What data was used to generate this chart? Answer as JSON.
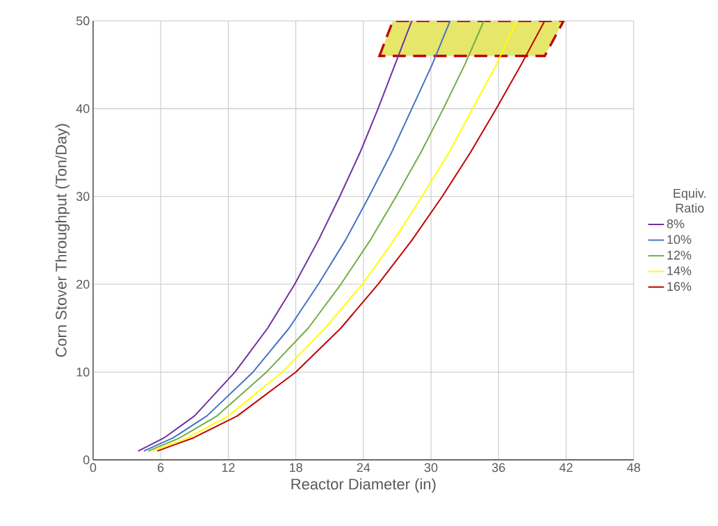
{
  "chart_data": {
    "type": "line",
    "xlabel": "Reactor Diameter (in)",
    "ylabel": "Corn Stover Throughput (Ton/Day)",
    "legend_title": "Equiv. Ratio",
    "xlim": [
      0,
      48
    ],
    "xticks": [
      0,
      6,
      12,
      18,
      24,
      30,
      36,
      42,
      48
    ],
    "ylim": [
      0,
      50
    ],
    "yticks": [
      0,
      10,
      20,
      30,
      40,
      50
    ],
    "grid": true,
    "legend": "right",
    "bands": [
      {
        "axis": "y",
        "from": 46,
        "to": 50,
        "color": "#e6e66a"
      }
    ],
    "marker": "none",
    "line_style": "solid",
    "series": [
      {
        "name": "8%",
        "color": "#7030a0",
        "x": [
          4.0,
          6.3,
          9.0,
          12.6,
          15.5,
          17.9,
          20.0,
          21.9,
          23.7,
          25.3,
          26.8,
          28.3
        ],
        "values": [
          1,
          2.5,
          5,
          10,
          15,
          20,
          25,
          30,
          35,
          40,
          45,
          50
        ]
      },
      {
        "name": "10%",
        "color": "#4472c4",
        "x": [
          4.5,
          7.1,
          10.1,
          14.2,
          17.4,
          20.0,
          22.4,
          24.5,
          26.5,
          28.3,
          30.1,
          31.7
        ],
        "values": [
          1,
          2.5,
          5,
          10,
          15,
          20,
          25,
          30,
          35,
          40,
          45,
          50
        ]
      },
      {
        "name": "12%",
        "color": "#70ad47",
        "x": [
          4.9,
          7.7,
          11.0,
          15.4,
          19.1,
          22.0,
          24.6,
          26.9,
          29.1,
          31.1,
          33.0,
          34.7
        ],
        "values": [
          1,
          2.5,
          5,
          10,
          15,
          20,
          25,
          30,
          35,
          40,
          45,
          50
        ]
      },
      {
        "name": "14%",
        "color": "#ffff00",
        "x": [
          5.3,
          8.4,
          12.0,
          16.8,
          20.6,
          23.9,
          26.7,
          29.2,
          31.6,
          33.7,
          35.8,
          37.6
        ],
        "values": [
          1,
          2.5,
          5,
          10,
          15,
          20,
          25,
          30,
          35,
          40,
          45,
          50
        ]
      },
      {
        "name": "16%",
        "color": "#c00000",
        "x": [
          5.7,
          8.9,
          12.8,
          18.0,
          22.0,
          25.3,
          28.3,
          31.0,
          33.5,
          35.8,
          38.0,
          40.1
        ],
        "values": [
          1,
          2.5,
          5,
          10,
          15,
          20,
          25,
          30,
          35,
          40,
          45,
          50
        ]
      }
    ]
  }
}
